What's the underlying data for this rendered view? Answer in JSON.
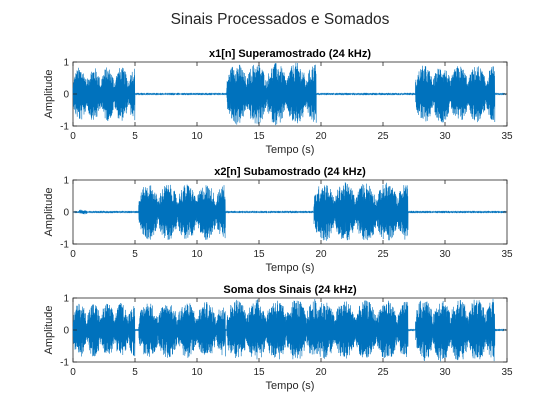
{
  "figure": {
    "suptitle": "Sinais Processados e Somados"
  },
  "chart_data": [
    {
      "type": "line",
      "title": "x1[n] Superamostrado (24 kHz)",
      "xlabel": "Tempo (s)",
      "ylabel": "Amplitude",
      "xlim": [
        0,
        35
      ],
      "ylim": [
        -1,
        1
      ],
      "xticks": [
        "0",
        "5",
        "10",
        "15",
        "20",
        "25",
        "30",
        "35"
      ],
      "yticks": [
        "-1",
        "0",
        "1"
      ],
      "grid": false,
      "color": "#0072BD",
      "series": [
        {
          "segments": [
            {
              "t": [
                0.0,
                5.0
              ],
              "amp": 0.85
            },
            {
              "t": [
                12.4,
                19.6
              ],
              "amp": 0.98
            },
            {
              "t": [
                27.6,
                34.0
              ],
              "amp": 0.9
            }
          ]
        }
      ]
    },
    {
      "type": "line",
      "title": "x2[n] Subamostrado (24 kHz)",
      "xlabel": "Tempo (s)",
      "ylabel": "Amplitude",
      "xlim": [
        0,
        35
      ],
      "ylim": [
        -1,
        1
      ],
      "xticks": [
        "0",
        "5",
        "10",
        "15",
        "20",
        "25",
        "30",
        "35"
      ],
      "yticks": [
        "-1",
        "0",
        "1"
      ],
      "grid": false,
      "color": "#0072BD",
      "series": [
        {
          "segments": [
            {
              "t": [
                0.5,
                1.1
              ],
              "amp": 0.08
            },
            {
              "t": [
                5.3,
                12.3
              ],
              "amp": 0.88
            },
            {
              "t": [
                19.4,
                27.0
              ],
              "amp": 0.93
            }
          ]
        }
      ]
    },
    {
      "type": "line",
      "title": "Soma dos Sinais (24 kHz)",
      "xlabel": "Tempo (s)",
      "ylabel": "Amplitude",
      "xlim": [
        0,
        35
      ],
      "ylim": [
        -1,
        1
      ],
      "xticks": [
        "0",
        "5",
        "10",
        "15",
        "20",
        "25",
        "30",
        "35"
      ],
      "yticks": [
        "-1",
        "0",
        "1"
      ],
      "grid": false,
      "color": "#0072BD",
      "series": [
        {
          "segments": [
            {
              "t": [
                0.0,
                5.0
              ],
              "amp": 0.85
            },
            {
              "t": [
                5.3,
                12.3
              ],
              "amp": 0.88
            },
            {
              "t": [
                12.4,
                19.6
              ],
              "amp": 0.98
            },
            {
              "t": [
                19.4,
                27.0
              ],
              "amp": 0.93
            },
            {
              "t": [
                27.6,
                34.0
              ],
              "amp": 1.0
            }
          ]
        }
      ]
    }
  ]
}
